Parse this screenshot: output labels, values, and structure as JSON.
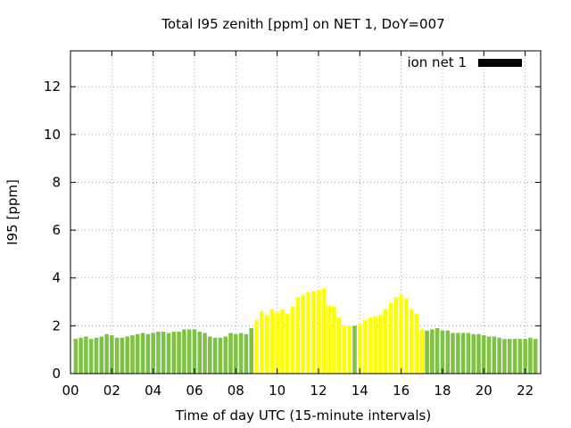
{
  "chart_data": {
    "type": "bar",
    "title": "Total I95 zenith [ppm] on NET 1, DoY=007",
    "xlabel": "Time of day UTC (15-minute intervals)",
    "ylabel": "I95 [ppm]",
    "ylim": [
      0,
      13.5
    ],
    "xlim": [
      0,
      22.75
    ],
    "y_ticks": [
      0,
      2,
      4,
      6,
      8,
      10,
      12
    ],
    "x_ticks": [
      0,
      2,
      4,
      6,
      8,
      10,
      12,
      14,
      16,
      18,
      20,
      22
    ],
    "x_tick_labels": [
      "00",
      "02",
      "04",
      "06",
      "08",
      "10",
      "12",
      "14",
      "16",
      "18",
      "20",
      "22"
    ],
    "grid": true,
    "legend": {
      "label": "ion net 1",
      "position": "top-right",
      "color": "#000000"
    },
    "bar_interval_hours": 0.25,
    "colors": {
      "normal": "#7dc242",
      "highlight": "#ffff00"
    },
    "highlight_ranges": [
      [
        8.875,
        13.5
      ],
      [
        13.875,
        17.0
      ]
    ],
    "x": [
      0.25,
      0.5,
      0.75,
      1.0,
      1.25,
      1.5,
      1.75,
      2.0,
      2.25,
      2.5,
      2.75,
      3.0,
      3.25,
      3.5,
      3.75,
      4.0,
      4.25,
      4.5,
      4.75,
      5.0,
      5.25,
      5.5,
      5.75,
      6.0,
      6.25,
      6.5,
      6.75,
      7.0,
      7.25,
      7.5,
      7.75,
      8.0,
      8.25,
      8.5,
      8.75,
      9.0,
      9.25,
      9.5,
      9.75,
      10.0,
      10.25,
      10.5,
      10.75,
      11.0,
      11.25,
      11.5,
      11.75,
      12.0,
      12.25,
      12.5,
      12.75,
      13.0,
      13.25,
      13.5,
      13.75,
      14.0,
      14.25,
      14.5,
      14.75,
      15.0,
      15.25,
      15.5,
      15.75,
      16.0,
      16.25,
      16.5,
      16.75,
      17.0,
      17.25,
      17.5,
      17.75,
      18.0,
      18.25,
      18.5,
      18.75,
      19.0,
      19.25,
      19.5,
      19.75,
      20.0,
      20.25,
      20.5,
      20.75,
      21.0,
      21.25,
      21.5,
      21.75,
      22.0,
      22.25,
      22.5
    ],
    "values": [
      1.45,
      1.5,
      1.55,
      1.45,
      1.5,
      1.55,
      1.65,
      1.6,
      1.5,
      1.5,
      1.55,
      1.6,
      1.65,
      1.7,
      1.65,
      1.7,
      1.75,
      1.75,
      1.7,
      1.75,
      1.75,
      1.85,
      1.85,
      1.85,
      1.75,
      1.7,
      1.55,
      1.5,
      1.5,
      1.55,
      1.7,
      1.65,
      1.7,
      1.65,
      1.9,
      2.25,
      2.6,
      2.45,
      2.7,
      2.55,
      2.7,
      2.5,
      2.8,
      3.2,
      3.3,
      3.4,
      3.45,
      3.5,
      3.55,
      2.85,
      2.8,
      2.35,
      2.0,
      2.0,
      2.0,
      2.1,
      2.25,
      2.35,
      2.4,
      2.45,
      2.7,
      2.95,
      3.2,
      3.3,
      3.15,
      2.7,
      2.5,
      1.85,
      1.8,
      1.85,
      1.9,
      1.8,
      1.8,
      1.7,
      1.7,
      1.7,
      1.7,
      1.65,
      1.65,
      1.6,
      1.55,
      1.55,
      1.5,
      1.45,
      1.45,
      1.45,
      1.45,
      1.45,
      1.5,
      1.45
    ]
  }
}
